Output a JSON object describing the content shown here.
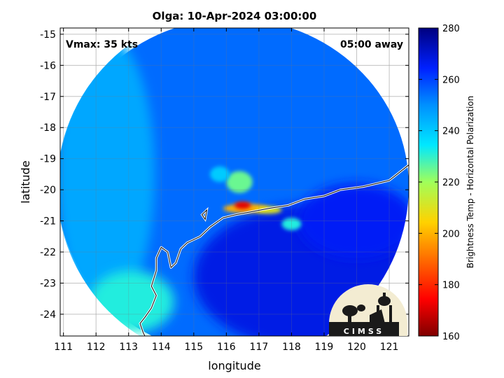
{
  "title": "Olga: 10-Apr-2024 03:00:00",
  "vmax_label": "Vmax: 35 kts",
  "time_label": "05:00 away",
  "logo_text": "CIMSS",
  "chart_data": {
    "type": "heatmap",
    "xlabel": "longitude",
    "ylabel": "latitude",
    "xlim": [
      110.9,
      121.6
    ],
    "ylim": [
      -24.7,
      -14.8
    ],
    "xticks": [
      111,
      112,
      113,
      114,
      115,
      116,
      117,
      118,
      119,
      120,
      121
    ],
    "yticks": [
      -15,
      -16,
      -17,
      -18,
      -19,
      -20,
      -21,
      -22,
      -23,
      -24
    ],
    "grid": true,
    "colorbar": {
      "label": "Brightness Temp - Horizontal Polarization",
      "range": [
        160,
        280
      ],
      "ticks": [
        160,
        180,
        200,
        220,
        240,
        260,
        280
      ]
    },
    "swath_circle": {
      "center_lon": 116.2,
      "center_lat": -19.9,
      "radius_deg": 5.4
    },
    "coastline": [
      [
        121.6,
        -19.2
      ],
      [
        121.0,
        -19.7
      ],
      [
        120.2,
        -19.9
      ],
      [
        119.5,
        -20.0
      ],
      [
        119.0,
        -20.2
      ],
      [
        118.4,
        -20.3
      ],
      [
        117.9,
        -20.5
      ],
      [
        117.3,
        -20.6
      ],
      [
        116.8,
        -20.7
      ],
      [
        116.3,
        -20.8
      ],
      [
        115.9,
        -20.9
      ],
      [
        115.5,
        -21.2
      ],
      [
        115.2,
        -21.5
      ],
      [
        114.8,
        -21.7
      ],
      [
        114.6,
        -21.9
      ],
      [
        114.45,
        -22.35
      ],
      [
        114.3,
        -22.5
      ],
      [
        114.2,
        -22.0
      ],
      [
        114.0,
        -21.85
      ],
      [
        113.85,
        -22.2
      ],
      [
        113.85,
        -22.6
      ],
      [
        113.7,
        -23.1
      ],
      [
        113.85,
        -23.4
      ],
      [
        113.7,
        -23.8
      ],
      [
        113.5,
        -24.1
      ],
      [
        113.35,
        -24.3
      ],
      [
        113.45,
        -24.6
      ],
      [
        113.5,
        -24.7
      ]
    ],
    "island": [
      [
        115.25,
        -20.8
      ],
      [
        115.4,
        -20.65
      ],
      [
        115.35,
        -20.95
      ],
      [
        115.25,
        -20.8
      ]
    ],
    "features": [
      {
        "kind": "background",
        "lon": 116.2,
        "lat": -19.9,
        "rx": 5.4,
        "ry": 5.4,
        "bt": 255
      },
      {
        "kind": "warm_west",
        "lon": 112.3,
        "lat": -19.5,
        "rx": 1.5,
        "ry": 4.5,
        "bt": 246
      },
      {
        "kind": "warm_sw",
        "lon": 113.1,
        "lat": -23.6,
        "rx": 1.3,
        "ry": 1.0,
        "bt": 232
      },
      {
        "kind": "land_cool",
        "lon": 118.5,
        "lat": -22.8,
        "rx": 3.5,
        "ry": 2.3,
        "bt": 268
      },
      {
        "kind": "land_cool",
        "lon": 120.0,
        "lat": -21.0,
        "rx": 1.8,
        "ry": 1.2,
        "bt": 266
      },
      {
        "kind": "rain_band",
        "lon": 116.6,
        "lat": -20.6,
        "rx": 0.7,
        "ry": 0.15,
        "bt": 200
      },
      {
        "kind": "rain_core",
        "lon": 116.5,
        "lat": -20.5,
        "rx": 0.25,
        "ry": 0.12,
        "bt": 172
      },
      {
        "kind": "rain_band",
        "lon": 117.3,
        "lat": -20.65,
        "rx": 0.4,
        "ry": 0.12,
        "bt": 210
      },
      {
        "kind": "rain_ring",
        "lon": 116.4,
        "lat": -19.75,
        "rx": 0.4,
        "ry": 0.35,
        "bt": 225
      },
      {
        "kind": "rain_spot",
        "lon": 118.0,
        "lat": -21.1,
        "rx": 0.3,
        "ry": 0.2,
        "bt": 232
      },
      {
        "kind": "rain_spot",
        "lon": 115.8,
        "lat": -19.5,
        "rx": 0.3,
        "ry": 0.25,
        "bt": 240
      }
    ]
  }
}
